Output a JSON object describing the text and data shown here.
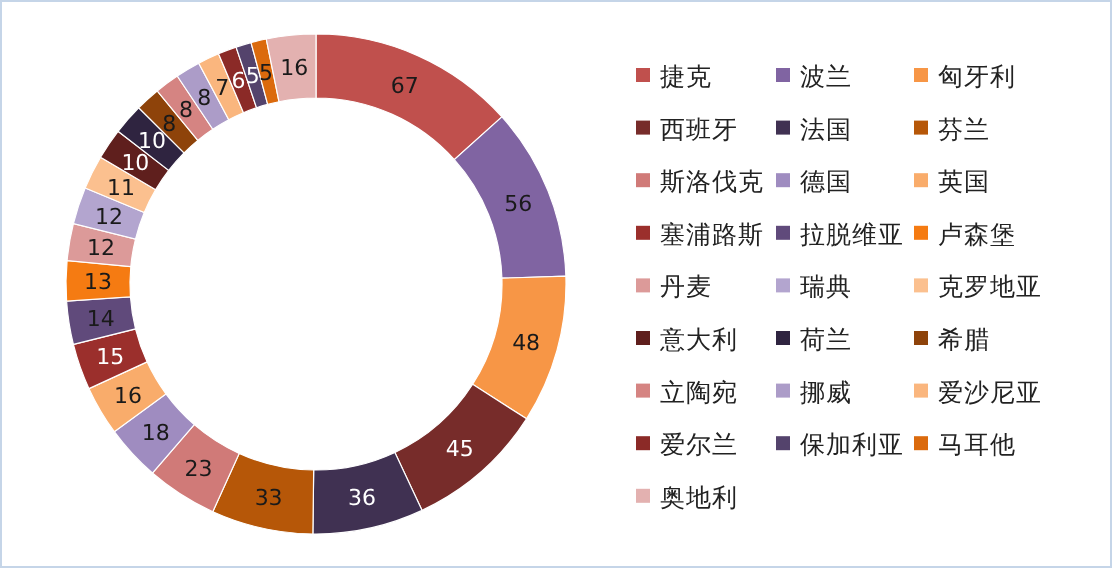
{
  "chart_data": {
    "type": "donut",
    "categories": [
      "捷克",
      "波兰",
      "匈牙利",
      "西班牙",
      "法国",
      "芬兰",
      "斯洛伐克",
      "德国",
      "英国",
      "塞浦路斯",
      "拉脱维亚",
      "卢森堡",
      "丹麦",
      "瑞典",
      "克罗地亚",
      "意大利",
      "荷兰",
      "希腊",
      "立陶宛",
      "挪威",
      "爱沙尼亚",
      "爱尔兰",
      "保加利亚",
      "马耳他",
      "奥地利"
    ],
    "values": [
      67,
      56,
      48,
      45,
      36,
      33,
      23,
      18,
      16,
      15,
      14,
      13,
      12,
      12,
      11,
      10,
      10,
      8,
      8,
      8,
      7,
      6,
      5,
      5,
      16
    ],
    "colors": [
      "#c0504d",
      "#8064a2",
      "#f79646",
      "#772c2a",
      "#403152",
      "#b65708",
      "#d07a78",
      "#9f8cc0",
      "#f9ac6b",
      "#9b2f2c",
      "#604a7b",
      "#f57b12",
      "#dc9a99",
      "#b3a5cf",
      "#fbc08f",
      "#5f1f1d",
      "#2f2440",
      "#8e430a",
      "#d58482",
      "#ac9cc8",
      "#fab67e",
      "#8b2a27",
      "#54436c",
      "#db6a0d",
      "#e3b1b0"
    ],
    "data_labels": true,
    "legend": "right"
  }
}
